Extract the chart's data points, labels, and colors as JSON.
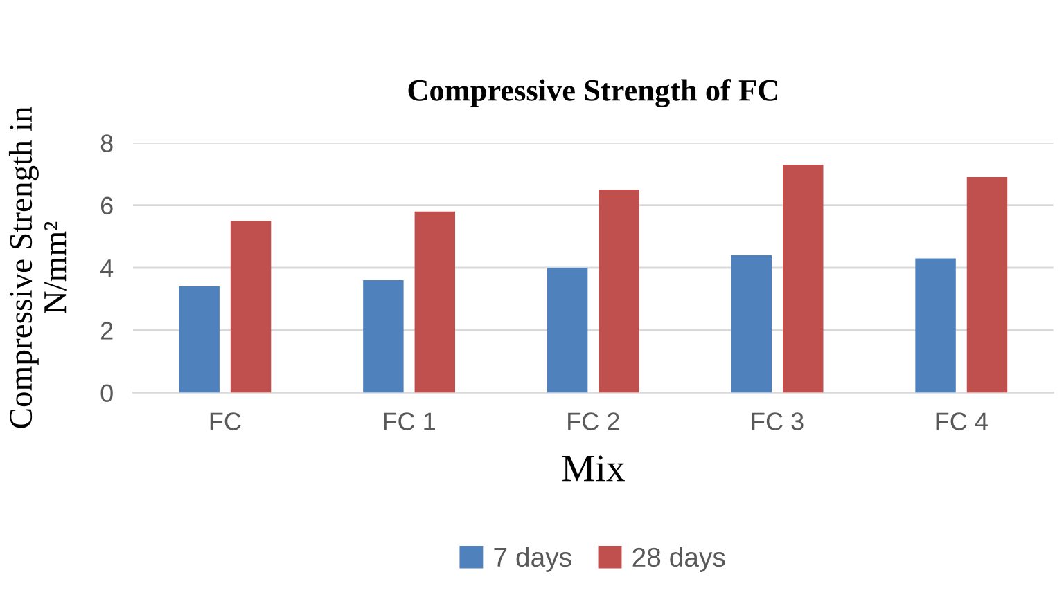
{
  "chart_data": {
    "type": "bar",
    "title": "Compressive Strength of FC",
    "xlabel": "Mix",
    "ylabel": "Compressive Strength in\nN/mm²",
    "categories": [
      "FC",
      "FC 1",
      "FC 2",
      "FC 3",
      "FC 4"
    ],
    "series": [
      {
        "name": "7 days",
        "color": "#4f81bd",
        "values": [
          3.4,
          3.6,
          4.0,
          4.4,
          4.3
        ]
      },
      {
        "name": "28 days",
        "color": "#c0504d",
        "values": [
          5.5,
          5.8,
          6.5,
          7.3,
          6.9
        ]
      }
    ],
    "ylim": [
      0,
      8
    ],
    "yticks": [
      0,
      2,
      4,
      6,
      8
    ],
    "grid": "y",
    "legend": "bottom"
  }
}
